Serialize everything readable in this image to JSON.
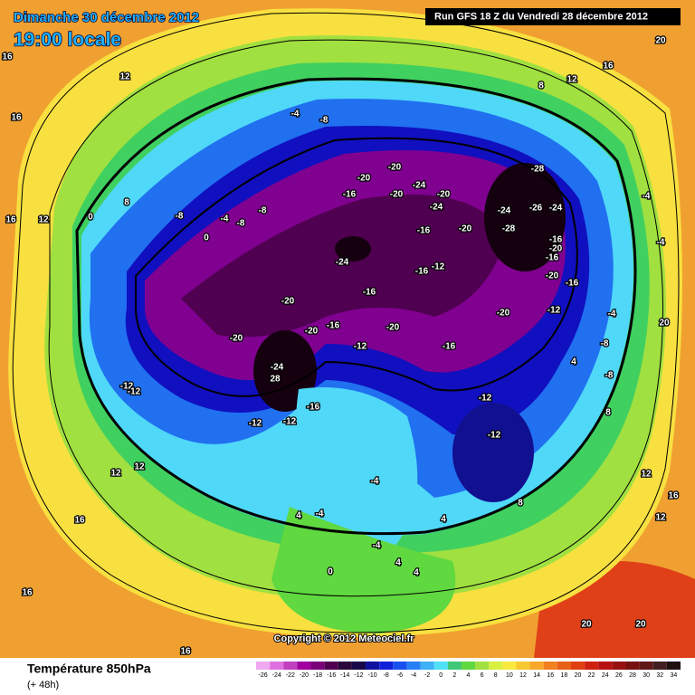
{
  "header": {
    "date": "Dimanche 30 décembre 2012",
    "time": "19:00 locale",
    "run": "Run GFS 18 Z du Vendredi 28 décembre 2012"
  },
  "footer": {
    "title": "Température 850hPa",
    "lead": "(+ 48h)",
    "copyright": "Copyright © 2012 Meteociel.fr"
  },
  "color_scale": {
    "ticks": [
      -26,
      -24,
      -22,
      -20,
      -18,
      -16,
      -14,
      -12,
      -10,
      -8,
      -6,
      -4,
      -2,
      0,
      2,
      4,
      6,
      8,
      10,
      12,
      14,
      16,
      18,
      20,
      22,
      24,
      26,
      28,
      30,
      32,
      34
    ],
    "colors": [
      "#f0a8f0",
      "#e070e0",
      "#c040c0",
      "#a000a0",
      "#780078",
      "#500050",
      "#28083a",
      "#180848",
      "#1010a0",
      "#1020d8",
      "#1850f0",
      "#2880f8",
      "#40b0f8",
      "#50e0f8",
      "#40c878",
      "#60d840",
      "#a0e040",
      "#d8f040",
      "#f8e840",
      "#f8c830",
      "#f8a828",
      "#f08020",
      "#e86018",
      "#e04010",
      "#d02010",
      "#b81010",
      "#981010",
      "#781010",
      "#601818",
      "#402020",
      "#201010"
    ]
  },
  "contour_labels": [
    16,
    12,
    16,
    8,
    -8,
    -4,
    -8,
    -8,
    0,
    12,
    16,
    0,
    -4,
    -8,
    -20,
    -20,
    -20,
    -16,
    -24,
    -20,
    -24,
    -24,
    -28,
    -28,
    -24,
    -26,
    -16,
    -20,
    -24,
    -16,
    -12,
    -16,
    -16,
    -20,
    -16,
    -20,
    -16,
    -20,
    -12,
    -20,
    -20,
    -20,
    -16,
    -20,
    -12,
    -16,
    -24,
    28,
    -12,
    -12,
    -16,
    -12,
    -12,
    -12,
    -12,
    12,
    12,
    16,
    16,
    16,
    4,
    -4,
    -4,
    -4,
    4,
    8,
    8,
    12,
    16,
    12,
    20,
    20,
    20,
    16,
    12,
    8,
    -4,
    -4,
    -4,
    -8,
    -8,
    4,
    20,
    0,
    4,
    4
  ]
}
